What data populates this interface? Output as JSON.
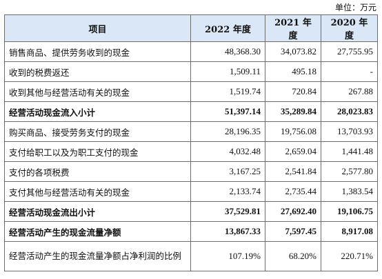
{
  "unit_label": "单位：万元",
  "headers": [
    "项目",
    "2022 年度",
    "2021 年度",
    "2020 年度"
  ],
  "rows": [
    {
      "label": "销售商品、提供劳务收到的现金",
      "values": [
        "48,368.30",
        "34,073.82",
        "27,755.95"
      ],
      "bold": false
    },
    {
      "label": "收到的税费返还",
      "values": [
        "1,509.11",
        "495.18",
        "-"
      ],
      "bold": false
    },
    {
      "label": "收到其他与经营活动有关的现金",
      "values": [
        "1,519.74",
        "720.84",
        "267.88"
      ],
      "bold": false
    },
    {
      "label": "经营活动现金流入小计",
      "values": [
        "51,397.14",
        "35,289.84",
        "28,023.83"
      ],
      "bold": true
    },
    {
      "label": "购买商品、接受劳务支付的现金",
      "values": [
        "28,196.35",
        "19,756.08",
        "13,703.93"
      ],
      "bold": false
    },
    {
      "label": "支付给职工以及为职工支付的现金",
      "values": [
        "4,032.48",
        "2,659.04",
        "1,441.48"
      ],
      "bold": false
    },
    {
      "label": "支付的各项税费",
      "values": [
        "3,167.25",
        "2,541.84",
        "2,577.80"
      ],
      "bold": false
    },
    {
      "label": "支付其他与经营活动有关的现金",
      "values": [
        "2,133.74",
        "2,735.44",
        "1,383.54"
      ],
      "bold": false
    },
    {
      "label": "经营活动现金流出小计",
      "values": [
        "37,529.81",
        "27,692.40",
        "19,106.75"
      ],
      "bold": true
    },
    {
      "label": "经营活动产生的现金流量净额",
      "values": [
        "13,867.33",
        "7,597.45",
        "8,917.08"
      ],
      "bold": true
    },
    {
      "label": "经营活动产生的现金流量净额占净利润的比例",
      "values": [
        "107.19%",
        "68.20%",
        "220.71%"
      ],
      "bold": false
    }
  ]
}
